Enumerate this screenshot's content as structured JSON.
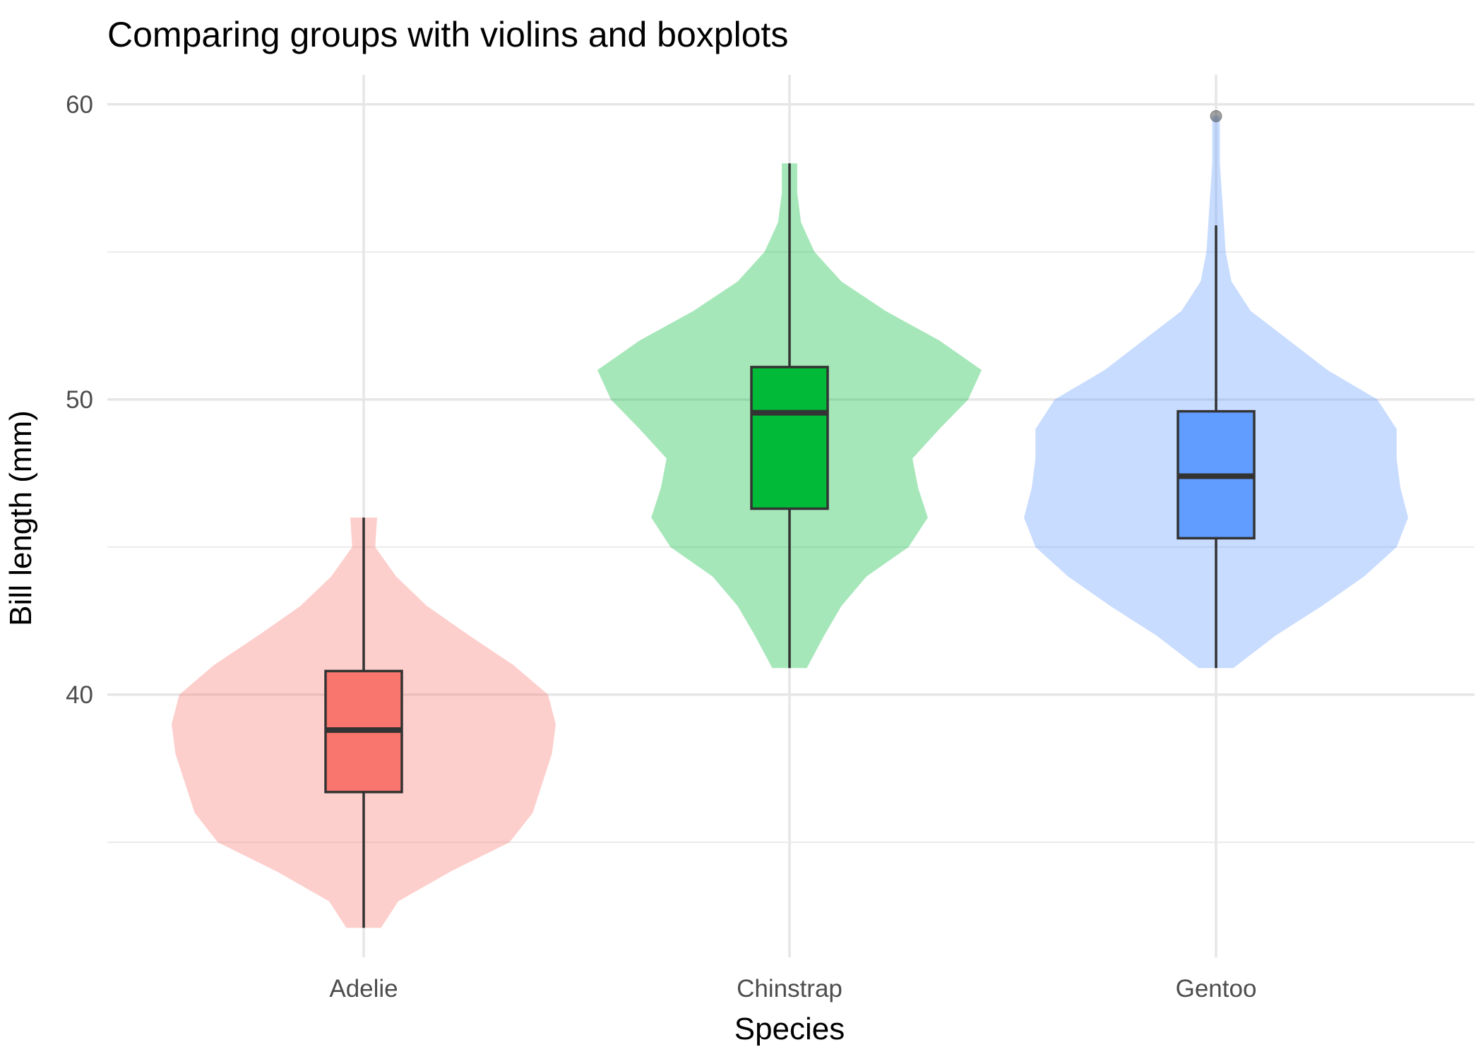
{
  "chart_data": {
    "type": "violin",
    "title": "Comparing groups with violins and boxplots",
    "xlabel": "Species",
    "ylabel": "Bill length (mm)",
    "ylim": [
      31.1,
      61
    ],
    "yticks": [
      40,
      50,
      60
    ],
    "grid": true,
    "legend": "none",
    "categories": [
      "Adelie",
      "Chinstrap",
      "Gentoo"
    ],
    "series": [
      {
        "fill_color": "#F8766D",
        "violin_min": 32.1,
        "violin_max": 46.0,
        "box": {
          "whisker_low": 32.1,
          "q1": 36.7,
          "median": 38.8,
          "q3": 40.8,
          "whisker_high": 46.0
        },
        "outliers": [],
        "density_profile": [
          [
            32.1,
            0.09
          ],
          [
            33.0,
            0.18
          ],
          [
            34.0,
            0.45
          ],
          [
            35.0,
            0.76
          ],
          [
            36.0,
            0.88
          ],
          [
            37.0,
            0.93
          ],
          [
            38.0,
            0.98
          ],
          [
            39.0,
            1.0
          ],
          [
            40.0,
            0.96
          ],
          [
            41.0,
            0.78
          ],
          [
            42.0,
            0.55
          ],
          [
            43.0,
            0.33
          ],
          [
            44.0,
            0.17
          ],
          [
            45.0,
            0.06
          ],
          [
            46.0,
            0.07
          ]
        ]
      },
      {
        "fill_color": "#00BA38",
        "violin_min": 40.9,
        "violin_max": 58.0,
        "box": {
          "whisker_low": 40.9,
          "q1": 46.3,
          "median": 49.55,
          "q3": 51.1,
          "whisker_high": 58.0
        },
        "outliers": [],
        "density_profile": [
          [
            40.9,
            0.09
          ],
          [
            42.0,
            0.18
          ],
          [
            43.0,
            0.27
          ],
          [
            44.0,
            0.4
          ],
          [
            45.0,
            0.62
          ],
          [
            46.0,
            0.72
          ],
          [
            47.0,
            0.67
          ],
          [
            48.0,
            0.64
          ],
          [
            49.0,
            0.78
          ],
          [
            50.0,
            0.93
          ],
          [
            51.0,
            1.0
          ],
          [
            52.0,
            0.78
          ],
          [
            53.0,
            0.5
          ],
          [
            54.0,
            0.27
          ],
          [
            55.0,
            0.13
          ],
          [
            56.0,
            0.06
          ],
          [
            57.0,
            0.04
          ],
          [
            58.0,
            0.04
          ]
        ]
      },
      {
        "fill_color": "#619CFF",
        "violin_min": 40.9,
        "violin_max": 59.6,
        "box": {
          "whisker_low": 40.9,
          "q1": 45.3,
          "median": 47.4,
          "q3": 49.6,
          "whisker_high": 55.9
        },
        "outliers": [
          59.6
        ],
        "density_profile": [
          [
            40.9,
            0.09
          ],
          [
            42.0,
            0.31
          ],
          [
            43.0,
            0.55
          ],
          [
            44.0,
            0.77
          ],
          [
            45.0,
            0.94
          ],
          [
            46.0,
            1.0
          ],
          [
            47.0,
            0.96
          ],
          [
            48.0,
            0.94
          ],
          [
            49.0,
            0.94
          ],
          [
            50.0,
            0.84
          ],
          [
            51.0,
            0.58
          ],
          [
            52.0,
            0.38
          ],
          [
            53.0,
            0.18
          ],
          [
            54.0,
            0.08
          ],
          [
            55.0,
            0.05
          ],
          [
            56.0,
            0.04
          ],
          [
            57.0,
            0.03
          ],
          [
            58.0,
            0.02
          ],
          [
            59.0,
            0.02
          ],
          [
            59.6,
            0.02
          ]
        ]
      }
    ]
  }
}
